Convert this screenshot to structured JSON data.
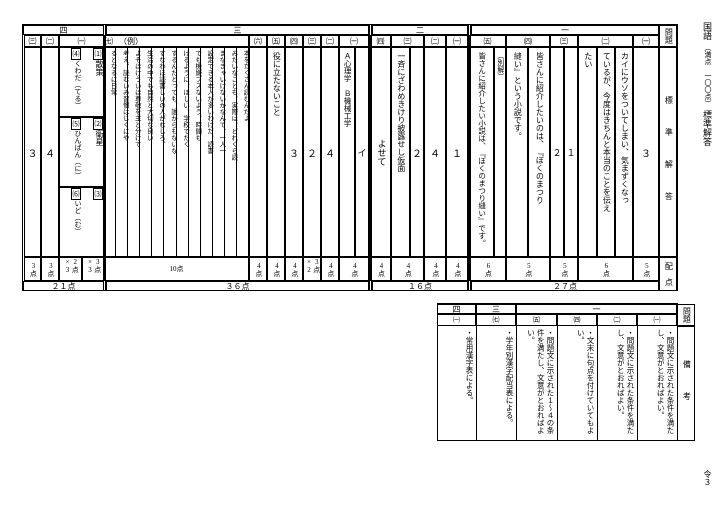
{
  "doc": {
    "subject": "国語",
    "full_marks": "（満点　一〇〇点）",
    "label_standard": "標準解答",
    "row_headers": {
      "question": "問題",
      "answer": "標　準　解　答",
      "points": "配　点",
      "remarks": "備　考"
    },
    "footer_code": "令３"
  },
  "sec1": {
    "tag": "一",
    "q1": {
      "num": "㈠",
      "points": "5点",
      "answer": "３"
    },
    "q2": {
      "num": "㈡",
      "points": "6点",
      "line_a": "カイにウソをついてしまい︑気まずくなっ",
      "line_b": "ているが︑今度はきちんと本当のことを伝え",
      "line_c": "たい"
    },
    "q3": {
      "num": "㈢",
      "points": "5点",
      "ans": "１",
      "ans2": "２"
    },
    "q4": {
      "num": "㈣",
      "points": "5点",
      "line_a": "皆さんに紹介したいのは︑﹃ぼくのまつり",
      "line_b": "縫い﹄という小説です︒"
    },
    "q5": {
      "num": "㈤",
      "points": "6点",
      "note_lead": "（別解）",
      "note": "皆さんに紹介したい小説は︑﹃ぼくのまつり縫い﹄です︒"
    },
    "total": "２７点"
  },
  "sec2": {
    "tag": "二",
    "q1": {
      "num": "㈠",
      "points": "4点",
      "ans": "１"
    },
    "q2": {
      "num": "㈡",
      "points": "4点",
      "ans": "４"
    },
    "q3": {
      "num": "㈢",
      "points": "4点",
      "ans": "２",
      "line": "一斉にざわめきけり披露せし仮面"
    },
    "q4": {
      "num": "㈣",
      "points": "4点",
      "ans": "よせて"
    },
    "total": "１６点"
  },
  "sec3": {
    "tag": "三",
    "q1": {
      "num": "㈠",
      "points": "4点",
      "ans": "イ",
      "sub": "Ａ心理学　Ｂ機械工学"
    },
    "q2": {
      "num": "㈡",
      "points": "4点",
      "ans": "４"
    },
    "q3": {
      "num": "㈢",
      "points": "3点×2",
      "ans": "２"
    },
    "q4": {
      "num": "㈣",
      "points": "4点",
      "ans": "３"
    },
    "q5": {
      "num": "㈤",
      "points": "4点",
      "ans": "役に立たないこと"
    },
    "q6": {
      "num": "㈥",
      "points": "4点"
    },
    "q7": {
      "num": "㈦",
      "points": "10点",
      "label": "（例）",
      "essay": [
        "本をたくさん読むんだよ︒",
        "みたいなことも︑実際は︑どれくら読",
        "まなきゃいけないかなんて︑一人一",
        "設定できる本人が多いわけだ︑読書",
        "でも機嫌ブスないよう︑時間も",
        "けるように︑ほしい︑学校でたく",
        "するんだとっても︑誰からもないな",
        "すなわほ読書しいの人がむしろ︑",
        "生活の中でも自然と大切な良い",
        "よそほけういほ尊敬を主と分けて",
        "考え︑読むいみ習慣はじくにや",
        "るとなるに日常"
      ]
    },
    "total": "３６点"
  },
  "sec4": {
    "tag": "四",
    "q1": {
      "num": "㈠",
      "points": "3点×3",
      "a": {
        "n": "⑴",
        "kanji": "散策",
        "kana": "くわだ（てる）"
      },
      "b": {
        "n": "⑵",
        "kanji": "衛星",
        "kana": "ひんぱん（に）"
      },
      "c": {
        "n": "⑶",
        "kanji": "",
        "kana": "いど（む）"
      }
    },
    "q2": {
      "num": "㈡",
      "points": "3点",
      "ans": "４"
    },
    "q3": {
      "num": "㈢",
      "points": "3点",
      "ans": "３"
    },
    "sub_a": "⑷",
    "sub_b": "⑸",
    "sub_c": "⑹",
    "subtotal": "2点×3",
    "total": "２１点"
  },
  "remarks": {
    "header_nums": [
      "㈠",
      "㈡",
      "㈣",
      "㈤",
      "㈦",
      "㈠"
    ],
    "header_sec_left": "三",
    "header_sec_right": "四",
    "c1": "・問題文に示された条件を満たし︑文意がとおればよい︒",
    "c2": "・問題文に示された条件を満たし︑文意がとおればよい︒",
    "c3": "・文末に句点を付けていてもよい︒",
    "c4": "・問題文に示された１～４の条件を満たし︑文意がとおればよい︒",
    "c5": "・学年別漢字配当表による︒",
    "c6": "・常用漢字表による︒"
  }
}
